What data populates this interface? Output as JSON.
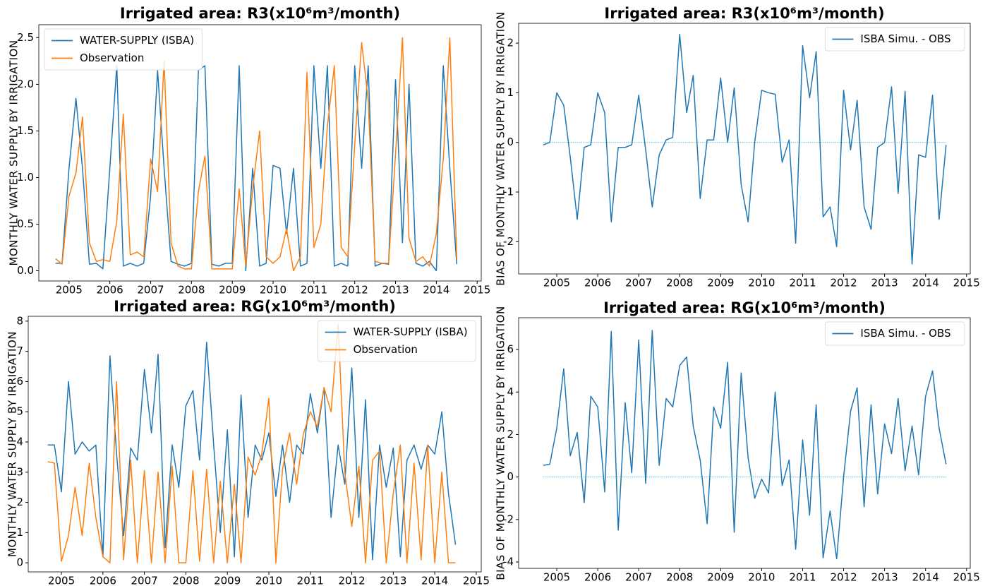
{
  "chart_data": [
    {
      "type": "line",
      "title": "Irrigated area: R3(x10⁶m³/month)",
      "y_label": "MONTHLY WATER SUPPLY BY IRRIGATION",
      "legend": "upper left",
      "x": [
        2004.67,
        2004.83,
        2005.0,
        2005.17,
        2005.33,
        2005.5,
        2005.67,
        2005.83,
        2006.0,
        2006.17,
        2006.33,
        2006.5,
        2006.67,
        2006.83,
        2007.0,
        2007.17,
        2007.33,
        2007.5,
        2007.67,
        2007.83,
        2008.0,
        2008.17,
        2008.33,
        2008.5,
        2008.67,
        2008.83,
        2009.0,
        2009.17,
        2009.33,
        2009.5,
        2009.67,
        2009.83,
        2010.0,
        2010.17,
        2010.33,
        2010.5,
        2010.67,
        2010.83,
        2011.0,
        2011.17,
        2011.33,
        2011.5,
        2011.67,
        2011.83,
        2012.0,
        2012.17,
        2012.33,
        2012.5,
        2012.67,
        2012.83,
        2013.0,
        2013.17,
        2013.33,
        2013.5,
        2013.67,
        2013.83,
        2014.0,
        2014.17,
        2014.33,
        2014.5
      ],
      "series": [
        {
          "name": "WATER-SUPPLY (ISBA)",
          "color": "#1f77b4",
          "values": [
            0.08,
            0.08,
            1.1,
            1.85,
            1.1,
            0.07,
            0.08,
            0.02,
            1.1,
            2.2,
            0.05,
            0.08,
            0.05,
            0.08,
            0.8,
            2.15,
            1.1,
            0.1,
            0.07,
            0.05,
            0.08,
            2.15,
            2.2,
            0.07,
            0.05,
            0.08,
            0.08,
            2.2,
            0.0,
            1.1,
            0.05,
            0.08,
            1.13,
            1.1,
            0.4,
            1.1,
            0.05,
            0.08,
            2.2,
            1.1,
            2.2,
            0.05,
            0.08,
            0.05,
            2.2,
            1.1,
            2.2,
            0.05,
            0.08,
            0.07,
            2.05,
            0.3,
            2.0,
            0.08,
            0.05,
            0.1,
            0.0,
            2.2,
            1.1,
            0.07
          ]
        },
        {
          "name": "Observation",
          "color": "#ff7f0e",
          "values": [
            0.13,
            0.07,
            0.8,
            1.05,
            1.65,
            0.3,
            0.1,
            0.12,
            0.1,
            0.53,
            1.68,
            0.17,
            0.2,
            0.15,
            1.2,
            0.85,
            2.25,
            0.3,
            0.05,
            0.02,
            0.02,
            0.85,
            1.23,
            0.02,
            0.02,
            0.02,
            0.02,
            0.88,
            0.05,
            0.88,
            1.5,
            0.15,
            0.08,
            0.15,
            0.45,
            0.0,
            0.15,
            2.13,
            0.25,
            0.5,
            1.55,
            2.2,
            0.25,
            0.15,
            1.35,
            2.45,
            1.83,
            0.1,
            0.08,
            0.08,
            1.25,
            2.5,
            0.35,
            0.1,
            0.15,
            0.05,
            0.4,
            1.2,
            2.5,
            0.12
          ]
        }
      ],
      "xlim": [
        2004.26,
        2015.1
      ],
      "ylim": [
        -0.11,
        2.64
      ],
      "xticks": [
        2005,
        2006,
        2007,
        2008,
        2009,
        2010,
        2011,
        2012,
        2013,
        2014,
        2015
      ],
      "yticks": [
        {
          "value": 0,
          "label": "0.0"
        },
        0.5,
        {
          "value": 1,
          "label": "1.0"
        },
        1.5,
        {
          "value": 2,
          "label": "2.0"
        },
        2.5
      ]
    },
    {
      "type": "line",
      "title": "Irrigated area: R3(x10⁶m³/month)",
      "y_label": "BIAS OF MONTHLY WATER SUPPLY BY IRRIGATION",
      "legend": "upper right",
      "x": [
        2004.67,
        2004.83,
        2005.0,
        2005.17,
        2005.33,
        2005.5,
        2005.67,
        2005.83,
        2006.0,
        2006.17,
        2006.33,
        2006.5,
        2006.67,
        2006.83,
        2007.0,
        2007.17,
        2007.33,
        2007.5,
        2007.67,
        2007.83,
        2008.0,
        2008.17,
        2008.33,
        2008.5,
        2008.67,
        2008.83,
        2009.0,
        2009.17,
        2009.33,
        2009.5,
        2009.67,
        2009.83,
        2010.0,
        2010.17,
        2010.33,
        2010.5,
        2010.67,
        2010.83,
        2011.0,
        2011.17,
        2011.33,
        2011.5,
        2011.67,
        2011.83,
        2012.0,
        2012.17,
        2012.33,
        2012.5,
        2012.67,
        2012.83,
        2013.0,
        2013.17,
        2013.33,
        2013.5,
        2013.67,
        2013.83,
        2014.0,
        2014.17,
        2014.33,
        2014.5
      ],
      "series": [
        {
          "name": "ISBA Simu. - OBS",
          "color": "#1f77b4",
          "values": [
            -0.05,
            0.0,
            1.0,
            0.75,
            -0.3,
            -1.55,
            -0.1,
            -0.05,
            1.0,
            0.6,
            -1.6,
            -0.1,
            -0.1,
            -0.05,
            0.95,
            -0.15,
            -1.3,
            -0.25,
            0.05,
            0.1,
            2.18,
            0.6,
            1.35,
            -1.13,
            0.05,
            0.05,
            1.3,
            0.0,
            1.1,
            -0.85,
            -1.6,
            0.0,
            1.05,
            1.0,
            0.97,
            -0.4,
            0.05,
            -2.03,
            1.95,
            0.9,
            1.83,
            -1.5,
            -1.3,
            -2.1,
            1.05,
            -0.15,
            0.85,
            -1.3,
            -1.75,
            -0.1,
            0.0,
            1.12,
            -1.03,
            1.03,
            -2.45,
            -0.25,
            -0.3,
            0.95,
            -1.55,
            -0.05
          ]
        }
      ],
      "hline": {
        "value": 0,
        "color": "#5ab4e0"
      },
      "xlim": [
        2004.07,
        2015.09
      ],
      "ylim": [
        -2.65,
        2.4
      ],
      "xticks": [
        2005,
        2006,
        2007,
        2008,
        2009,
        2010,
        2011,
        2012,
        2013,
        2014,
        2015
      ],
      "yticks": [
        -2,
        -1,
        0,
        1,
        2
      ]
    },
    {
      "type": "line",
      "title": "Irrigated area: RG(x10⁶m³/month)",
      "y_label": "MONTHLY WATER SUPPLY BY IRRIGATION",
      "legend": "upper right",
      "x": [
        2004.67,
        2004.83,
        2005.0,
        2005.17,
        2005.33,
        2005.5,
        2005.67,
        2005.83,
        2006.0,
        2006.17,
        2006.33,
        2006.5,
        2006.67,
        2006.83,
        2007.0,
        2007.17,
        2007.33,
        2007.5,
        2007.67,
        2007.83,
        2008.0,
        2008.17,
        2008.33,
        2008.5,
        2008.67,
        2008.83,
        2009.0,
        2009.17,
        2009.33,
        2009.5,
        2009.67,
        2009.83,
        2010.0,
        2010.17,
        2010.33,
        2010.5,
        2010.67,
        2010.83,
        2011.0,
        2011.17,
        2011.33,
        2011.5,
        2011.67,
        2011.83,
        2012.0,
        2012.17,
        2012.33,
        2012.5,
        2012.67,
        2012.83,
        2013.0,
        2013.17,
        2013.33,
        2013.5,
        2013.67,
        2013.83,
        2014.0,
        2014.17,
        2014.33,
        2014.5
      ],
      "series": [
        {
          "name": "WATER-SUPPLY (ISBA)",
          "color": "#1f77b4",
          "values": [
            3.9,
            3.9,
            2.35,
            6.0,
            3.6,
            4.0,
            3.7,
            3.9,
            0.2,
            6.85,
            3.6,
            0.9,
            3.8,
            3.4,
            6.4,
            4.3,
            6.9,
            0.5,
            3.9,
            2.5,
            5.2,
            5.7,
            3.4,
            7.3,
            3.9,
            1.0,
            4.4,
            0.2,
            5.55,
            1.5,
            3.9,
            3.4,
            4.3,
            2.2,
            3.9,
            2.0,
            3.9,
            3.6,
            5.6,
            4.3,
            5.8,
            1.5,
            3.9,
            2.6,
            6.45,
            1.5,
            5.4,
            0.1,
            3.9,
            2.5,
            3.8,
            0.2,
            3.4,
            3.9,
            3.1,
            3.9,
            3.6,
            5.0,
            2.3,
            0.6
          ]
        },
        {
          "name": "Observation",
          "color": "#ff7f0e",
          "values": [
            3.35,
            3.3,
            0.05,
            0.9,
            2.5,
            0.9,
            3.3,
            1.5,
            0.2,
            0.0,
            6.0,
            0.1,
            3.4,
            0.0,
            3.05,
            0.0,
            3.0,
            0.0,
            3.2,
            0.0,
            0.0,
            3.05,
            0.05,
            3.1,
            0.0,
            2.7,
            0.0,
            2.6,
            0.0,
            3.5,
            2.9,
            3.6,
            5.45,
            0.0,
            3.1,
            4.3,
            2.6,
            4.25,
            5.0,
            4.5,
            5.8,
            5.0,
            7.9,
            3.0,
            1.2,
            3.2,
            0.0,
            3.4,
            3.7,
            0.0,
            2.3,
            3.9,
            0.0,
            3.3,
            0.1,
            3.9,
            0.0,
            3.0,
            0.0,
            0.0
          ]
        }
      ],
      "xlim": [
        2004.2,
        2015.12
      ],
      "ylim": [
        -0.3,
        8.16
      ],
      "xticks": [
        2005,
        2006,
        2007,
        2008,
        2009,
        2010,
        2011,
        2012,
        2013,
        2014,
        2015
      ],
      "yticks": [
        0,
        1,
        2,
        3,
        4,
        5,
        6,
        7,
        8
      ]
    },
    {
      "type": "line",
      "title": "Irrigated area: RG(x10⁶m³/month)",
      "y_label": "BIAS OF MONTHLY WATER SUPPLY BY IRRIGATION",
      "legend": "upper right",
      "x": [
        2004.67,
        2004.83,
        2005.0,
        2005.17,
        2005.33,
        2005.5,
        2005.67,
        2005.83,
        2006.0,
        2006.17,
        2006.33,
        2006.5,
        2006.67,
        2006.83,
        2007.0,
        2007.17,
        2007.33,
        2007.5,
        2007.67,
        2007.83,
        2008.0,
        2008.17,
        2008.33,
        2008.5,
        2008.67,
        2008.83,
        2009.0,
        2009.17,
        2009.33,
        2009.5,
        2009.67,
        2009.83,
        2010.0,
        2010.17,
        2010.33,
        2010.5,
        2010.67,
        2010.83,
        2011.0,
        2011.17,
        2011.33,
        2011.5,
        2011.67,
        2011.83,
        2012.0,
        2012.17,
        2012.33,
        2012.5,
        2012.67,
        2012.83,
        2013.0,
        2013.17,
        2013.33,
        2013.5,
        2013.67,
        2013.83,
        2014.0,
        2014.17,
        2014.33,
        2014.5
      ],
      "series": [
        {
          "name": "ISBA Simu. - OBS",
          "color": "#1f77b4",
          "values": [
            0.55,
            0.6,
            2.3,
            5.1,
            1.0,
            2.1,
            -1.2,
            3.8,
            3.3,
            -0.7,
            6.85,
            -2.5,
            3.5,
            0.2,
            6.45,
            -0.3,
            6.9,
            0.55,
            3.7,
            3.3,
            5.25,
            5.65,
            2.4,
            0.8,
            -2.2,
            3.3,
            2.3,
            5.4,
            -2.6,
            4.9,
            0.9,
            -1.0,
            -0.1,
            -0.75,
            4.0,
            -0.4,
            0.8,
            -3.4,
            1.75,
            -1.8,
            3.4,
            -3.8,
            -1.6,
            -3.85,
            0.0,
            3.1,
            4.2,
            -1.4,
            3.4,
            -0.8,
            2.5,
            1.1,
            3.7,
            0.3,
            2.4,
            0.1,
            3.8,
            5.0,
            2.3,
            0.6
          ]
        }
      ],
      "hline": {
        "value": 0,
        "color": "#5ab4e0"
      },
      "xlim": [
        2004.07,
        2015.09
      ],
      "ylim": [
        -4.3,
        7.5
      ],
      "xticks": [
        2005,
        2006,
        2007,
        2008,
        2009,
        2010,
        2011,
        2012,
        2013,
        2014,
        2015
      ],
      "yticks": [
        -4,
        -2,
        0,
        2,
        4,
        6
      ]
    }
  ]
}
